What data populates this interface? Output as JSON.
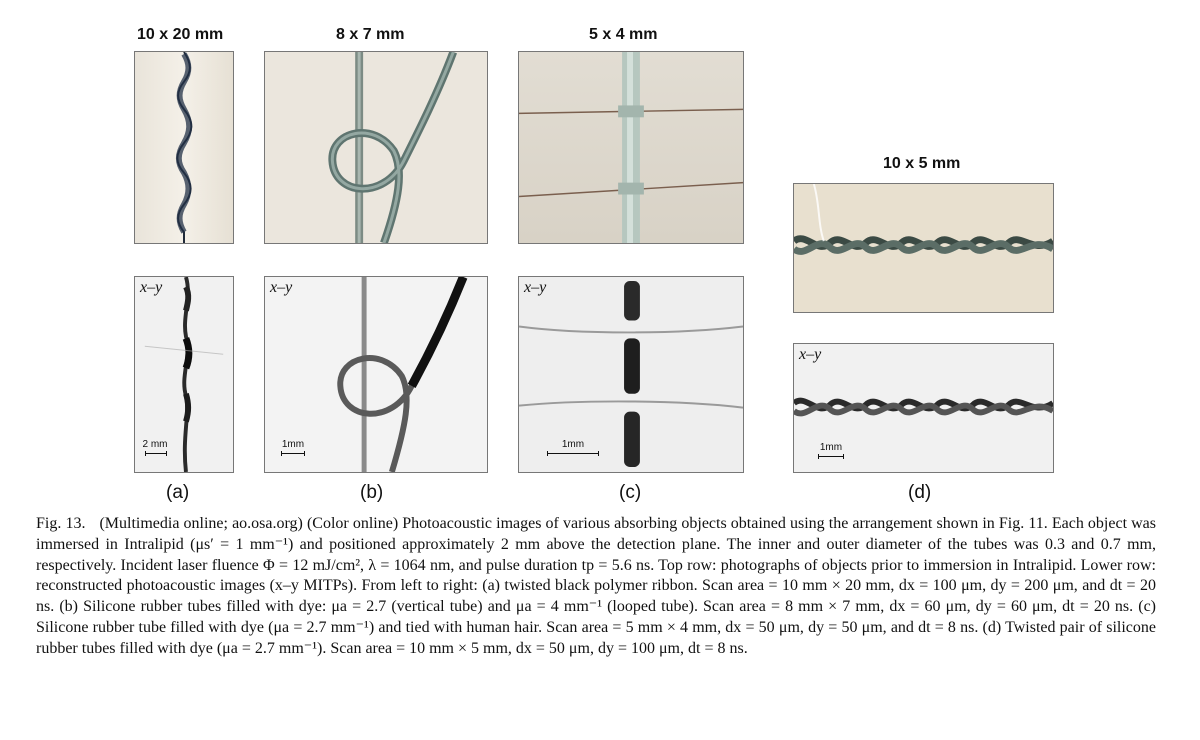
{
  "panels": {
    "a": {
      "title": "10 x 20 mm",
      "label": "(a)",
      "view": "x–y",
      "scale": "2 mm"
    },
    "b": {
      "title": "8 x 7 mm",
      "label": "(b)",
      "view": "x–y",
      "scale": "1mm"
    },
    "c": {
      "title": "5 x 4 mm",
      "label": "(c)",
      "view": "x–y",
      "scale": "1mm"
    },
    "d": {
      "title": "10 x 5 mm",
      "label": "(d)",
      "view": "x–y",
      "scale": "1mm"
    }
  },
  "caption": {
    "label": "Fig. 13.",
    "text": "(Multimedia online; ao.osa.org) (Color online) Photoacoustic images of various absorbing objects obtained using the arrangement shown in Fig. 11. Each object was immersed in Intralipid (μs′ = 1 mm⁻¹) and positioned approximately 2 mm above the detection plane. The inner and outer diameter of the tubes was 0.3 and 0.7 mm, respectively. Incident laser fluence Φ = 12 mJ/cm², λ = 1064 nm, and pulse duration tp = 5.6 ns. Top row: photographs of objects prior to immersion in Intralipid. Lower row: reconstructed photoacoustic images (x–y MITPs). From left to right: (a) twisted black polymer ribbon. Scan area = 10 mm × 20 mm, dx = 100 μm, dy = 200 μm, and dt = 20 ns. (b) Silicone rubber tubes filled with dye: μa = 2.7 (vertical tube) and μa = 4 mm⁻¹ (looped tube). Scan area = 8 mm × 7 mm, dx = 60 μm, dy = 60 μm, dt = 20 ns. (c) Silicone rubber tube filled with dye (μa = 2.7 mm⁻¹) and tied with human hair. Scan area = 5 mm × 4 mm, dx = 50 μm, dy = 50 μm, and dt = 8 ns. (d) Twisted pair of silicone rubber tubes filled with dye (μa = 2.7 mm⁻¹). Scan area = 10 mm × 5 mm, dx = 50 μm, dy = 100 μm, dt = 8 ns."
  }
}
